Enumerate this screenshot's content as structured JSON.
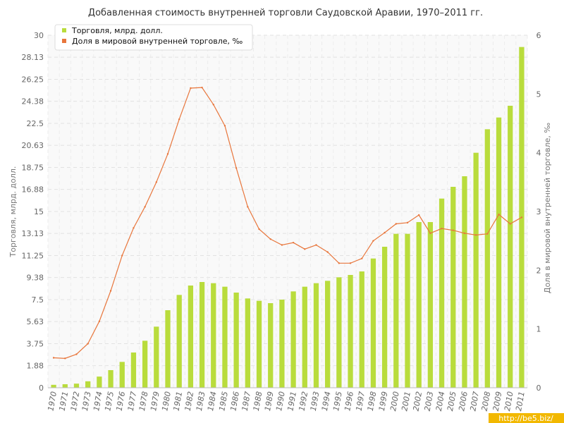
{
  "chart_data": {
    "type": "bar",
    "title": "Добавленная стоимость внутренней торговли Саудовской Аравии, 1970–2011 гг.",
    "categories": [
      "1970",
      "1971",
      "1972",
      "1973",
      "1974",
      "1975",
      "1976",
      "1977",
      "1978",
      "1979",
      "1980",
      "1981",
      "1982",
      "1983",
      "1984",
      "1985",
      "1986",
      "1987",
      "1988",
      "1989",
      "1990",
      "1991",
      "1992",
      "1993",
      "1994",
      "1995",
      "1996",
      "1997",
      "1998",
      "1999",
      "2000",
      "2001",
      "2002",
      "2003",
      "2004",
      "2005",
      "2006",
      "2007",
      "2008",
      "2009",
      "2010",
      "2011"
    ],
    "ylabel": "Торговля, млрд. долл.",
    "ylabel_right": "Доля в мировой внутренней торговле, ‰",
    "ylim": [
      0,
      30
    ],
    "ylim_right": [
      0,
      6
    ],
    "yticks": [
      "0",
      "1.88",
      "3.75",
      "5.63",
      "7.5",
      "9.38",
      "11.25",
      "13.13",
      "15",
      "16.88",
      "18.75",
      "20.63",
      "22.5",
      "24.38",
      "26.25",
      "28.13",
      "30"
    ],
    "yticks_right": [
      "0",
      "1",
      "2",
      "3",
      "4",
      "5",
      "6"
    ],
    "grid": true,
    "legend_position": "top-left",
    "series": [
      {
        "name": "Торговля, млрд. долл.",
        "type": "bar",
        "axis": "left",
        "color": "#b9dc3c",
        "values": [
          0.25,
          0.3,
          0.35,
          0.55,
          0.95,
          1.5,
          2.2,
          3.0,
          4.0,
          5.2,
          6.6,
          7.9,
          8.7,
          9.0,
          8.9,
          8.6,
          8.1,
          7.6,
          7.4,
          7.2,
          7.5,
          8.2,
          8.6,
          8.9,
          9.1,
          9.4,
          9.6,
          9.9,
          11.0,
          12.0,
          13.1,
          13.1,
          14.1,
          14.1,
          16.1,
          17.1,
          18.0,
          20.0,
          22.0,
          23.0,
          24.0,
          29.0
        ]
      },
      {
        "name": "Доля в мировой внутренней торговле, ‰",
        "type": "line",
        "axis": "right",
        "color": "#e8763c",
        "values": [
          0.51,
          0.5,
          0.57,
          0.75,
          1.13,
          1.65,
          2.25,
          2.72,
          3.08,
          3.5,
          3.98,
          4.57,
          5.1,
          5.11,
          4.82,
          4.46,
          3.74,
          3.08,
          2.7,
          2.53,
          2.43,
          2.47,
          2.36,
          2.43,
          2.31,
          2.12,
          2.12,
          2.2,
          2.5,
          2.64,
          2.79,
          2.81,
          2.94,
          2.63,
          2.71,
          2.68,
          2.63,
          2.6,
          2.62,
          2.95,
          2.79,
          2.9
        ]
      }
    ]
  },
  "watermark": "http://be5.biz/"
}
